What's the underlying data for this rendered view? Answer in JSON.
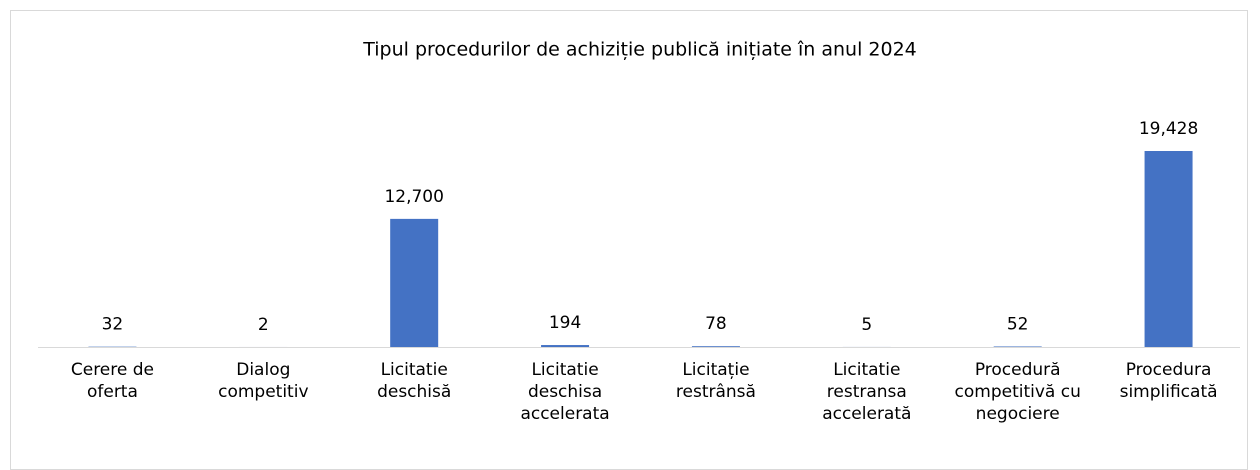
{
  "chart_data": {
    "type": "bar",
    "title": "Tipul procedurilor de achiziție publică inițiate în anul 2024",
    "categories": [
      "Cerere de oferta",
      "Dialog competitiv",
      "Licitatie deschisă",
      "Licitatie deschisa accelerata",
      "Licitație restrânsă",
      "Licitatie restransa accelerată",
      "Procedură competitivă cu negociere",
      "Procedura simplificată"
    ],
    "values": [
      32,
      2,
      12700,
      194,
      78,
      5,
      52,
      19428
    ],
    "value_labels": [
      "32",
      "2",
      "12,700",
      "194",
      "78",
      "5",
      "52",
      "19,428"
    ],
    "color": "#4472c4"
  }
}
